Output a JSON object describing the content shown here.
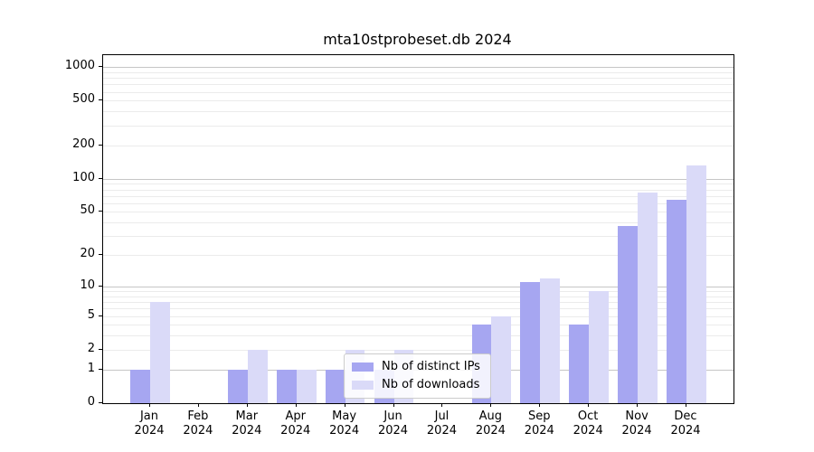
{
  "figure": {
    "title": "mta10stprobeset.db 2024"
  },
  "colors": {
    "distinct_ips": "#a6a6f1",
    "downloads": "#dadaf8",
    "grid_major": "#c6c6c6",
    "grid_minor": "#ebebeb",
    "axis": "#000000"
  },
  "legend": {
    "items": [
      {
        "label": "Nb of distinct IPs",
        "series": "distinct_ips"
      },
      {
        "label": "Nb of downloads",
        "series": "downloads"
      }
    ]
  },
  "chart_data": {
    "type": "bar",
    "title": "mta10stprobeset.db 2024",
    "categories": [
      "Jan",
      "Feb",
      "Mar",
      "Apr",
      "May",
      "Jun",
      "Jul",
      "Aug",
      "Sep",
      "Oct",
      "Nov",
      "Dec"
    ],
    "x_sub_label": "2024",
    "series": [
      {
        "name": "Nb of distinct IPs",
        "color_key": "distinct_ips",
        "values": [
          1,
          0,
          1,
          1,
          1,
          1,
          0,
          4,
          11,
          4,
          37,
          65
        ]
      },
      {
        "name": "Nb of downloads",
        "color_key": "downloads",
        "values": [
          7,
          0,
          2,
          1,
          2,
          2,
          0,
          5,
          12,
          9,
          75,
          132
        ]
      }
    ],
    "yscale": "log10(value+1)",
    "yticks": [
      0,
      1,
      2,
      5,
      10,
      20,
      50,
      100,
      200,
      500,
      1000
    ],
    "ylim": [
      0,
      1280
    ],
    "xlabel": "",
    "ylabel": "",
    "grid": true,
    "legend_position": "lower center"
  }
}
